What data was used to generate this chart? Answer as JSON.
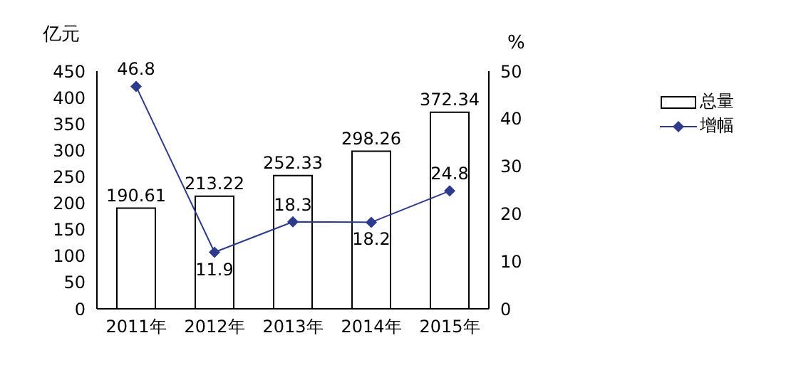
{
  "chart_data": {
    "type": "bar",
    "categories": [
      "2011年",
      "2012年",
      "2013年",
      "2014年",
      "2015年"
    ],
    "ylabel": "亿元",
    "y2label": "%",
    "series": [
      {
        "name": "总量",
        "color": "#ffffff",
        "values": [
          190.61,
          213.22,
          252.33,
          298.26,
          372.34
        ]
      },
      {
        "name": "增幅",
        "type": "line",
        "axis": "y2",
        "color": "#2e3a8c",
        "marker": "diamond",
        "values": [
          46.8,
          11.9,
          18.3,
          18.2,
          24.8
        ]
      }
    ],
    "ylim": [
      0,
      450
    ],
    "yticks": [
      0,
      50,
      100,
      150,
      200,
      250,
      300,
      350,
      400,
      450
    ],
    "y2lim": [
      0,
      50
    ],
    "y2ticks": [
      0,
      10,
      20,
      30,
      40,
      50
    ],
    "data_labels": true,
    "grid": false,
    "legend": "top right"
  }
}
